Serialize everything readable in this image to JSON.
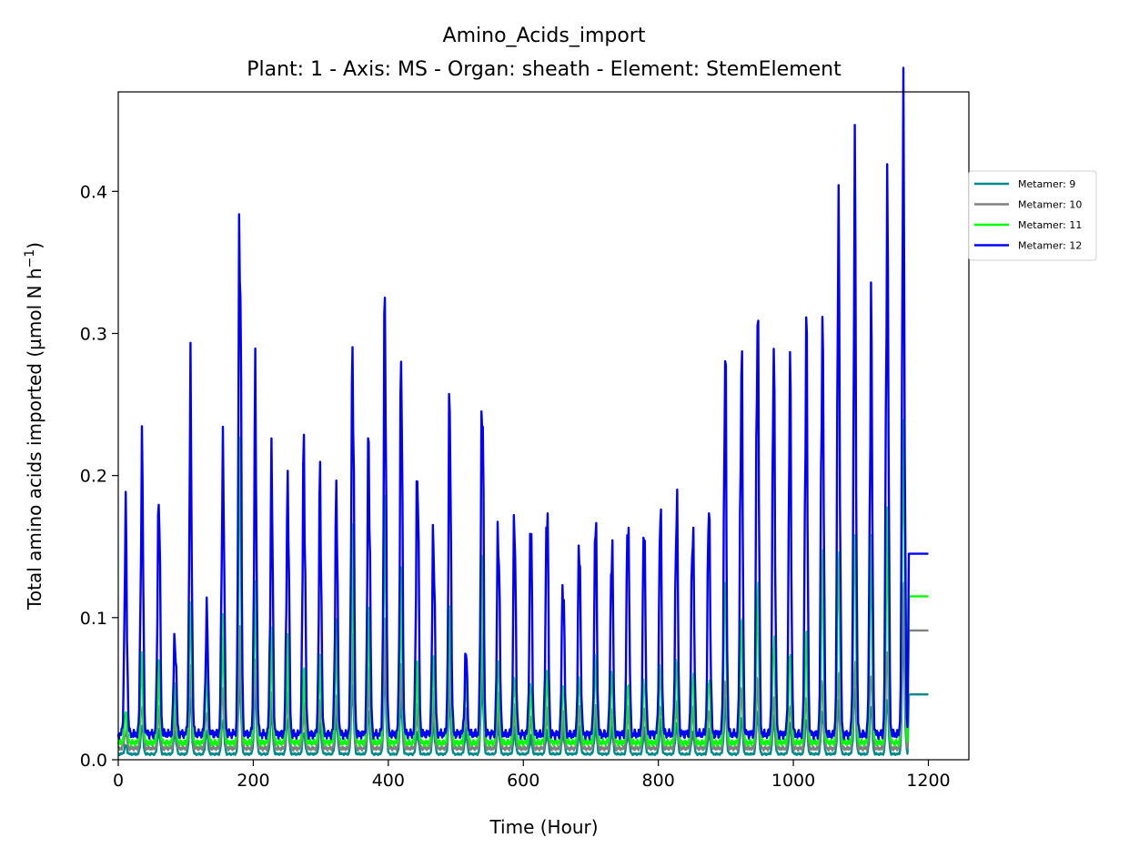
{
  "chart_data": {
    "type": "line",
    "title": "Amino_Acids_import",
    "subtitle": "Plant: 1 - Axis: MS - Organ: sheath - Element: StemElement",
    "xlabel": "Time (Hour)",
    "ylabel_main": "Total amino acids imported (µmol N h",
    "ylabel_sup": "−1",
    "ylabel_close": ")",
    "xlim": [
      0,
      1260
    ],
    "ylim": [
      0,
      0.47
    ],
    "xticks": [
      0,
      200,
      400,
      600,
      800,
      1000,
      1200
    ],
    "xtick_labels": [
      "0",
      "200",
      "400",
      "600",
      "800",
      "1000",
      "1200"
    ],
    "yticks": [
      0.0,
      0.1,
      0.2,
      0.3,
      0.4
    ],
    "ytick_labels": [
      "0.0",
      "0.1",
      "0.2",
      "0.3",
      "0.4"
    ],
    "grid": false,
    "legend_position": "outside-top-right",
    "peak_hours": [
      11,
      35,
      60,
      84,
      107,
      131,
      155,
      180,
      203,
      227,
      251,
      275,
      299,
      323,
      347,
      371,
      395,
      419,
      443,
      467,
      491,
      515,
      539,
      563,
      587,
      611,
      635,
      659,
      683,
      707,
      731,
      755,
      779,
      803,
      827,
      851,
      875,
      899,
      923,
      947,
      971,
      995,
      1019,
      1043,
      1067,
      1091,
      1115,
      1139,
      1163
    ],
    "series": [
      {
        "name": "Metamer: 9",
        "color": "#008b8b",
        "baseline": 0.004,
        "peaks": [
          0.01,
          0.025,
          0.022,
          0.02,
          0.045,
          0.02,
          0.03,
          0.06,
          0.05,
          0.035,
          0.03,
          0.02,
          0.025,
          0.03,
          0.055,
          0.035,
          0.065,
          0.045,
          0.02,
          0.025,
          0.045,
          0.02,
          0.06,
          0.025,
          0.02,
          0.015,
          0.02,
          0.02,
          0.02,
          0.025,
          0.022,
          0.02,
          0.02,
          0.025,
          0.025,
          0.02,
          0.02,
          0.04,
          0.03,
          0.035,
          0.03,
          0.025,
          0.03,
          0.035,
          0.04,
          0.05,
          0.04,
          0.045,
          0.092
        ],
        "end_x": 1200,
        "end_value": 0.046
      },
      {
        "name": "Metamer: 10",
        "color": "#808080",
        "baseline": 0.008,
        "peaks": [
          0.02,
          0.04,
          0.035,
          0.03,
          0.065,
          0.035,
          0.05,
          0.08,
          0.07,
          0.05,
          0.045,
          0.035,
          0.04,
          0.045,
          0.08,
          0.055,
          0.09,
          0.065,
          0.035,
          0.04,
          0.065,
          0.035,
          0.095,
          0.04,
          0.035,
          0.03,
          0.035,
          0.03,
          0.035,
          0.04,
          0.035,
          0.035,
          0.035,
          0.04,
          0.04,
          0.035,
          0.035,
          0.06,
          0.05,
          0.055,
          0.045,
          0.04,
          0.045,
          0.055,
          0.06,
          0.07,
          0.065,
          0.08,
          0.12
        ],
        "end_x": 1200,
        "end_value": 0.091
      },
      {
        "name": "Metamer: 11",
        "color": "#00ff00",
        "baseline": 0.012,
        "peaks": [
          0.035,
          0.07,
          0.06,
          0.05,
          0.11,
          0.06,
          0.09,
          0.22,
          0.12,
          0.08,
          0.075,
          0.06,
          0.07,
          0.085,
          0.14,
          0.1,
          0.18,
          0.12,
          0.06,
          0.07,
          0.11,
          0.06,
          0.13,
          0.07,
          0.06,
          0.05,
          0.06,
          0.055,
          0.06,
          0.07,
          0.06,
          0.055,
          0.06,
          0.065,
          0.07,
          0.06,
          0.06,
          0.13,
          0.1,
          0.12,
          0.09,
          0.08,
          0.09,
          0.14,
          0.15,
          0.17,
          0.15,
          0.17,
          0.25
        ],
        "end_x": 1200,
        "end_value": 0.115
      },
      {
        "name": "Metamer: 12",
        "color": "#0000ff",
        "baseline": 0.018,
        "peaks": [
          0.16,
          0.21,
          0.19,
          0.09,
          0.245,
          0.1,
          0.225,
          0.405,
          0.245,
          0.2,
          0.2,
          0.22,
          0.185,
          0.18,
          0.3,
          0.23,
          0.305,
          0.27,
          0.215,
          0.165,
          0.245,
          0.075,
          0.27,
          0.17,
          0.165,
          0.165,
          0.185,
          0.13,
          0.15,
          0.165,
          0.155,
          0.18,
          0.165,
          0.17,
          0.185,
          0.175,
          0.18,
          0.27,
          0.28,
          0.335,
          0.285,
          0.26,
          0.3,
          0.32,
          0.38,
          0.385,
          0.305,
          0.41,
          0.445
        ],
        "end_x": 1200,
        "end_value": 0.145
      }
    ]
  }
}
